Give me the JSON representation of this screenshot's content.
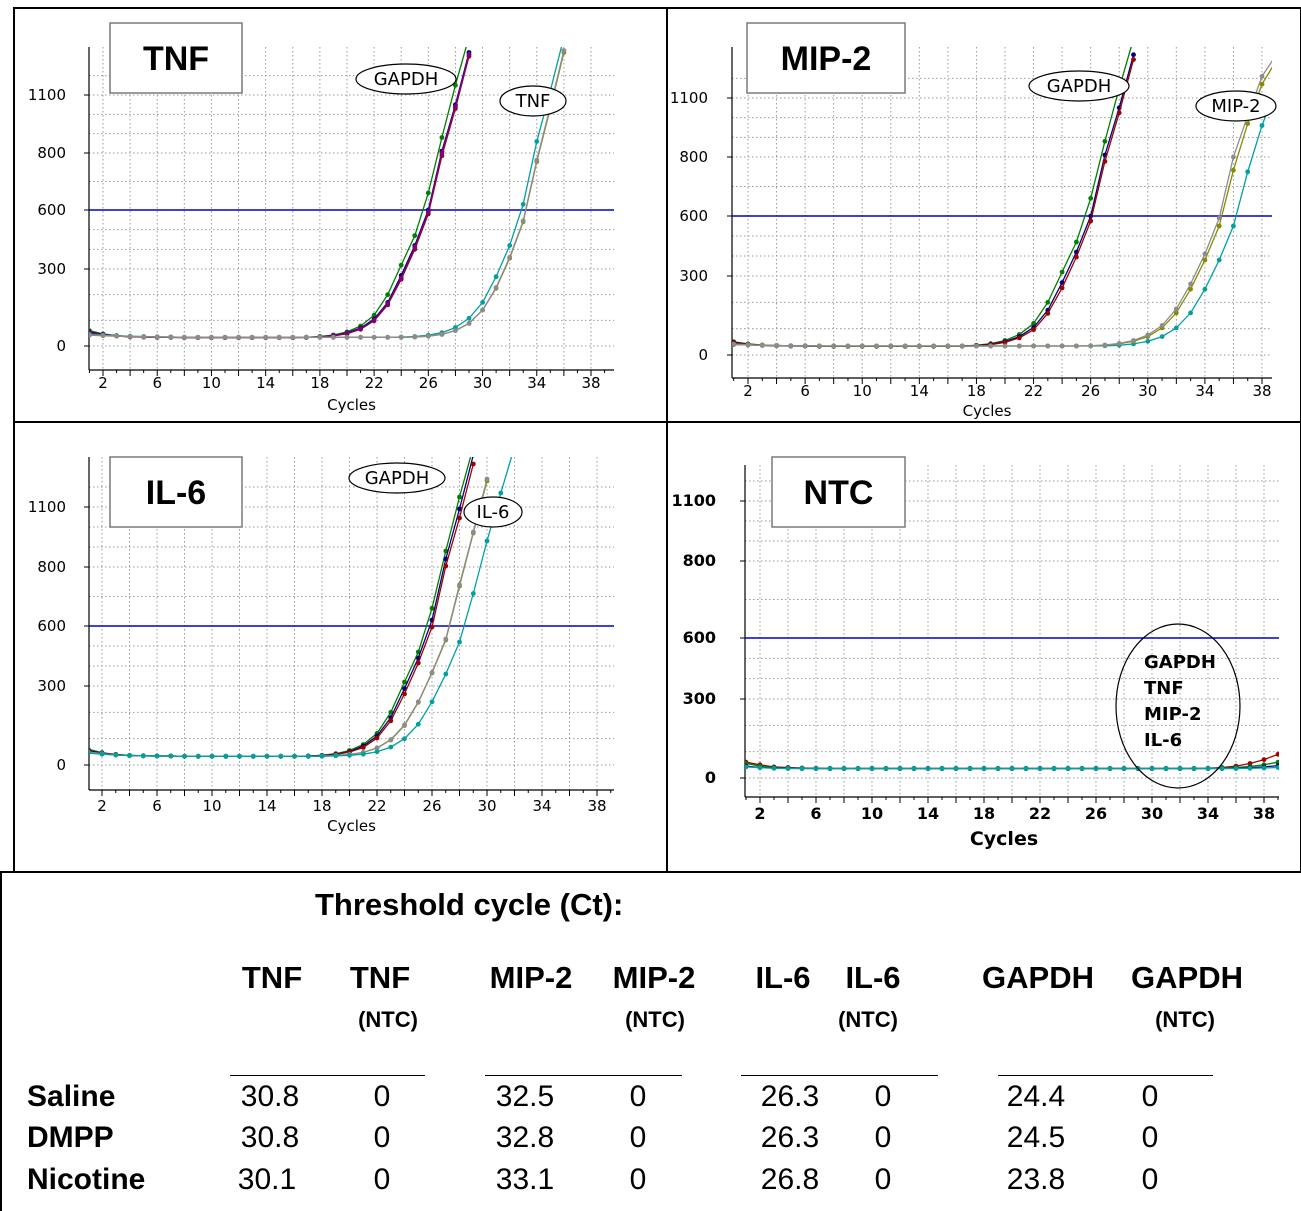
{
  "chart_data": [
    {
      "type": "line",
      "title": "TNF",
      "xlabel": "Cycles",
      "ylabel": "",
      "x_ticks": [
        "2",
        "6",
        "10",
        "14",
        "18",
        "22",
        "26",
        "30",
        "34",
        "38"
      ],
      "y_ticks": [
        "0",
        "300",
        "600",
        "800",
        "1100"
      ],
      "xlim": [
        1,
        39.5
      ],
      "threshold": 600,
      "annotations": [
        "GAPDH",
        "TNF"
      ],
      "series": [
        {
          "color": "#007f00",
          "ct": 24.0,
          "values": [
            60,
            47,
            40,
            37,
            35,
            34,
            34,
            33,
            33,
            33,
            33,
            33,
            33,
            33,
            33,
            33,
            34,
            37,
            43,
            55,
            78,
            120,
            200,
            320,
            470,
            660,
            880,
            1150,
            1400
          ]
        },
        {
          "color": "#00007f",
          "ct": 24.4,
          "values": [
            55,
            45,
            40,
            36,
            35,
            34,
            34,
            33,
            33,
            33,
            33,
            33,
            33,
            33,
            33,
            33,
            34,
            36,
            41,
            51,
            70,
            105,
            170,
            275,
            420,
            600,
            810,
            1050,
            1320
          ]
        },
        {
          "color": "#a00000",
          "ct": 24.6,
          "values": [
            50,
            44,
            39,
            36,
            35,
            34,
            34,
            33,
            33,
            33,
            33,
            33,
            33,
            33,
            33,
            33,
            33,
            35,
            39,
            48,
            65,
            98,
            160,
            260,
            400,
            580,
            790,
            1030,
            1300
          ]
        },
        {
          "color": "#7f007f",
          "ct": 24.5,
          "values": [
            52,
            44,
            39,
            36,
            35,
            34,
            34,
            33,
            33,
            33,
            33,
            33,
            33,
            33,
            33,
            33,
            33,
            35,
            40,
            49,
            67,
            100,
            165,
            265,
            410,
            590,
            800,
            1040,
            1310
          ]
        },
        {
          "color": "#00a0a0",
          "ct": 30.3,
          "values": [
            45,
            42,
            40,
            38,
            37,
            36,
            35,
            34,
            34,
            34,
            34,
            34,
            34,
            34,
            34,
            34,
            34,
            34,
            34,
            34,
            34,
            34,
            34,
            35,
            37,
            42,
            52,
            72,
            108,
            170,
            270,
            420,
            620,
            860,
            1120,
            1400
          ]
        },
        {
          "color": "#8a8a00",
          "ct": 30.8,
          "values": [
            42,
            40,
            38,
            37,
            36,
            35,
            35,
            34,
            34,
            34,
            34,
            34,
            34,
            34,
            34,
            34,
            34,
            34,
            34,
            34,
            34,
            34,
            34,
            34,
            35,
            38,
            45,
            60,
            88,
            140,
            225,
            355,
            540,
            770,
            1030,
            1320
          ]
        },
        {
          "color": "#8c8c8c",
          "ct": 30.8,
          "values": [
            43,
            41,
            39,
            37,
            36,
            35,
            35,
            34,
            34,
            34,
            34,
            34,
            34,
            34,
            34,
            34,
            34,
            34,
            34,
            34,
            34,
            34,
            34,
            34,
            35,
            38,
            45,
            60,
            88,
            140,
            228,
            360,
            545,
            775,
            1040,
            1330
          ]
        }
      ]
    },
    {
      "type": "line",
      "title": "MIP-2",
      "xlabel": "Cycles",
      "ylabel": "",
      "x_ticks": [
        "2",
        "6",
        "10",
        "14",
        "18",
        "22",
        "26",
        "30",
        "34",
        "38"
      ],
      "y_ticks": [
        "0",
        "300",
        "600",
        "800",
        "1100"
      ],
      "xlim": [
        1,
        39
      ],
      "threshold": 600,
      "annotations": [
        "GAPDH",
        "MIP-2"
      ],
      "series": [
        {
          "color": "#007f00",
          "ct": 24.0,
          "values": [
            50,
            42,
            38,
            36,
            35,
            34,
            34,
            33,
            33,
            33,
            33,
            33,
            33,
            33,
            33,
            33,
            34,
            37,
            43,
            55,
            78,
            120,
            200,
            320,
            470,
            660,
            880,
            1150,
            1400
          ]
        },
        {
          "color": "#00007f",
          "ct": 24.4,
          "values": [
            48,
            41,
            37,
            35,
            34,
            34,
            33,
            33,
            33,
            33,
            33,
            33,
            33,
            33,
            33,
            33,
            34,
            36,
            41,
            51,
            70,
            105,
            170,
            275,
            420,
            600,
            810,
            1050,
            1320
          ]
        },
        {
          "color": "#a00000",
          "ct": 24.7,
          "values": [
            46,
            40,
            37,
            35,
            34,
            34,
            33,
            33,
            33,
            33,
            33,
            33,
            33,
            33,
            33,
            33,
            33,
            35,
            39,
            48,
            65,
            96,
            158,
            255,
            395,
            575,
            785,
            1025,
            1295
          ]
        },
        {
          "color": "#00a0a0",
          "ct": 33.0,
          "values": [
            40,
            38,
            37,
            36,
            35,
            35,
            34,
            34,
            34,
            34,
            34,
            34,
            34,
            34,
            34,
            34,
            34,
            34,
            34,
            34,
            34,
            34,
            34,
            34,
            34,
            34,
            35,
            37,
            42,
            52,
            70,
            103,
            160,
            250,
            380,
            550,
            750,
            960,
            1150
          ]
        },
        {
          "color": "#8a8a00",
          "ct": 32.5,
          "values": [
            40,
            38,
            37,
            36,
            35,
            35,
            34,
            34,
            34,
            34,
            34,
            34,
            34,
            34,
            34,
            34,
            34,
            34,
            34,
            34,
            34,
            34,
            34,
            34,
            34,
            35,
            37,
            42,
            52,
            70,
            103,
            160,
            250,
            380,
            550,
            755,
            970,
            1170,
            1290
          ]
        },
        {
          "color": "#8c8c8c",
          "ct": 32.3,
          "values": [
            41,
            39,
            37,
            36,
            35,
            35,
            34,
            34,
            34,
            34,
            34,
            34,
            34,
            34,
            34,
            34,
            34,
            34,
            34,
            34,
            34,
            34,
            34,
            34,
            34,
            35,
            38,
            44,
            55,
            76,
            112,
            175,
            270,
            410,
            590,
            800,
            1010,
            1210,
            1320
          ]
        }
      ]
    },
    {
      "type": "line",
      "title": "IL-6",
      "xlabel": "Cycles",
      "ylabel": "",
      "x_ticks": [
        "2",
        "6",
        "10",
        "14",
        "18",
        "22",
        "26",
        "30",
        "34",
        "38"
      ],
      "y_ticks": [
        "0",
        "300",
        "600",
        "800",
        "1100"
      ],
      "xlim": [
        1,
        39
      ],
      "threshold": 600,
      "annotations": [
        "GAPDH",
        "IL-6"
      ],
      "series": [
        {
          "color": "#007f00",
          "ct": 24.0,
          "values": [
            60,
            47,
            40,
            37,
            35,
            34,
            34,
            33,
            33,
            33,
            33,
            33,
            33,
            33,
            33,
            33,
            34,
            37,
            43,
            55,
            78,
            120,
            200,
            320,
            470,
            660,
            880,
            1150,
            1400
          ]
        },
        {
          "color": "#00007f",
          "ct": 24.3,
          "values": [
            55,
            45,
            40,
            36,
            35,
            34,
            34,
            33,
            33,
            33,
            33,
            33,
            33,
            33,
            33,
            33,
            34,
            36,
            41,
            51,
            72,
            110,
            180,
            290,
            440,
            620,
            840,
            1090,
            1360
          ]
        },
        {
          "color": "#a00000",
          "ct": 24.5,
          "values": [
            52,
            44,
            39,
            36,
            35,
            34,
            34,
            33,
            33,
            33,
            33,
            33,
            33,
            33,
            33,
            33,
            33,
            35,
            40,
            49,
            67,
            102,
            168,
            270,
            415,
            595,
            805,
            1045,
            1315
          ]
        },
        {
          "color": "#8a8a00",
          "ct": 26.2,
          "values": [
            48,
            42,
            38,
            36,
            35,
            34,
            34,
            33,
            33,
            33,
            33,
            33,
            33,
            33,
            33,
            33,
            33,
            34,
            36,
            40,
            48,
            64,
            95,
            150,
            238,
            365,
            530,
            735,
            970,
            1230
          ]
        },
        {
          "color": "#8c8c8c",
          "ct": 26.2,
          "values": [
            49,
            43,
            38,
            36,
            35,
            34,
            34,
            33,
            33,
            33,
            33,
            33,
            33,
            33,
            33,
            33,
            33,
            34,
            36,
            40,
            48,
            65,
            97,
            152,
            240,
            368,
            535,
            740,
            975,
            1240
          ]
        },
        {
          "color": "#00a0a0",
          "ct": 27.1,
          "values": [
            45,
            41,
            38,
            36,
            35,
            34,
            34,
            33,
            33,
            33,
            33,
            33,
            33,
            33,
            33,
            33,
            33,
            33,
            35,
            37,
            41,
            50,
            68,
            100,
            155,
            240,
            360,
            520,
            710,
            930,
            1170,
            1400
          ]
        }
      ]
    },
    {
      "type": "line",
      "title": "NTC",
      "xlabel": "Cycles",
      "ylabel": "",
      "x_ticks": [
        "2",
        "6",
        "10",
        "14",
        "18",
        "22",
        "26",
        "30",
        "34",
        "38"
      ],
      "y_ticks": [
        "0",
        "300",
        "600",
        "800",
        "1100"
      ],
      "xlim": [
        1,
        40
      ],
      "threshold": 600,
      "annotations": [
        "GAPDH",
        "TNF",
        "MIP-2",
        "IL-6"
      ],
      "series": [
        {
          "color": "#a00000",
          "values": [
            60,
            50,
            42,
            40,
            38,
            37,
            36,
            36,
            36,
            36,
            36,
            36,
            36,
            36,
            36,
            36,
            36,
            36,
            36,
            36,
            36,
            36,
            36,
            36,
            36,
            36,
            36,
            36,
            36,
            36,
            36,
            36,
            36,
            37,
            40,
            45,
            55,
            70,
            90,
            115
          ]
        },
        {
          "color": "#007f00",
          "values": [
            55,
            45,
            40,
            38,
            37,
            36,
            36,
            36,
            36,
            36,
            36,
            36,
            36,
            36,
            36,
            36,
            36,
            36,
            36,
            36,
            36,
            36,
            36,
            36,
            36,
            36,
            36,
            36,
            36,
            36,
            36,
            36,
            36,
            36,
            38,
            40,
            44,
            50,
            60,
            72
          ]
        },
        {
          "color": "#00007f",
          "values": [
            45,
            40,
            38,
            37,
            36,
            36,
            36,
            36,
            36,
            36,
            36,
            36,
            36,
            36,
            36,
            36,
            36,
            36,
            36,
            36,
            36,
            36,
            36,
            36,
            36,
            36,
            36,
            36,
            36,
            36,
            36,
            36,
            36,
            36,
            36,
            37,
            39,
            42,
            47,
            54
          ]
        },
        {
          "color": "#00a0a0",
          "values": [
            42,
            39,
            37,
            36,
            36,
            36,
            36,
            36,
            36,
            36,
            36,
            36,
            36,
            36,
            36,
            36,
            36,
            36,
            36,
            36,
            36,
            36,
            36,
            36,
            36,
            36,
            36,
            36,
            36,
            36,
            36,
            36,
            36,
            36,
            36,
            36,
            37,
            38,
            40,
            43
          ]
        }
      ]
    }
  ],
  "table": {
    "title": "Threshold cycle (Ct):",
    "columns": [
      {
        "main": "TNF",
        "sub": ""
      },
      {
        "main": "TNF",
        "sub": "(NTC)"
      },
      {
        "main": "MIP-2",
        "sub": ""
      },
      {
        "main": "MIP-2",
        "sub": "(NTC)"
      },
      {
        "main": "IL-6",
        "sub": ""
      },
      {
        "main": "IL-6",
        "sub": "(NTC)"
      },
      {
        "main": "GAPDH",
        "sub": ""
      },
      {
        "main": "GAPDH",
        "sub": "(NTC)"
      }
    ],
    "underline": "__________",
    "rows": [
      {
        "label": "Saline",
        "values": [
          "30.8",
          "0",
          "32.5",
          "0",
          "26.3",
          "0",
          "24.4",
          "0"
        ]
      },
      {
        "label": "DMPP",
        "values": [
          "30.8",
          "0",
          "32.8",
          "0",
          "26.3",
          "0",
          "24.5",
          "0"
        ]
      },
      {
        "label": "Nicotine",
        "values": [
          "30.1",
          "0",
          "33.1",
          "0",
          "26.8",
          "0",
          "23.8",
          "0"
        ]
      }
    ]
  }
}
